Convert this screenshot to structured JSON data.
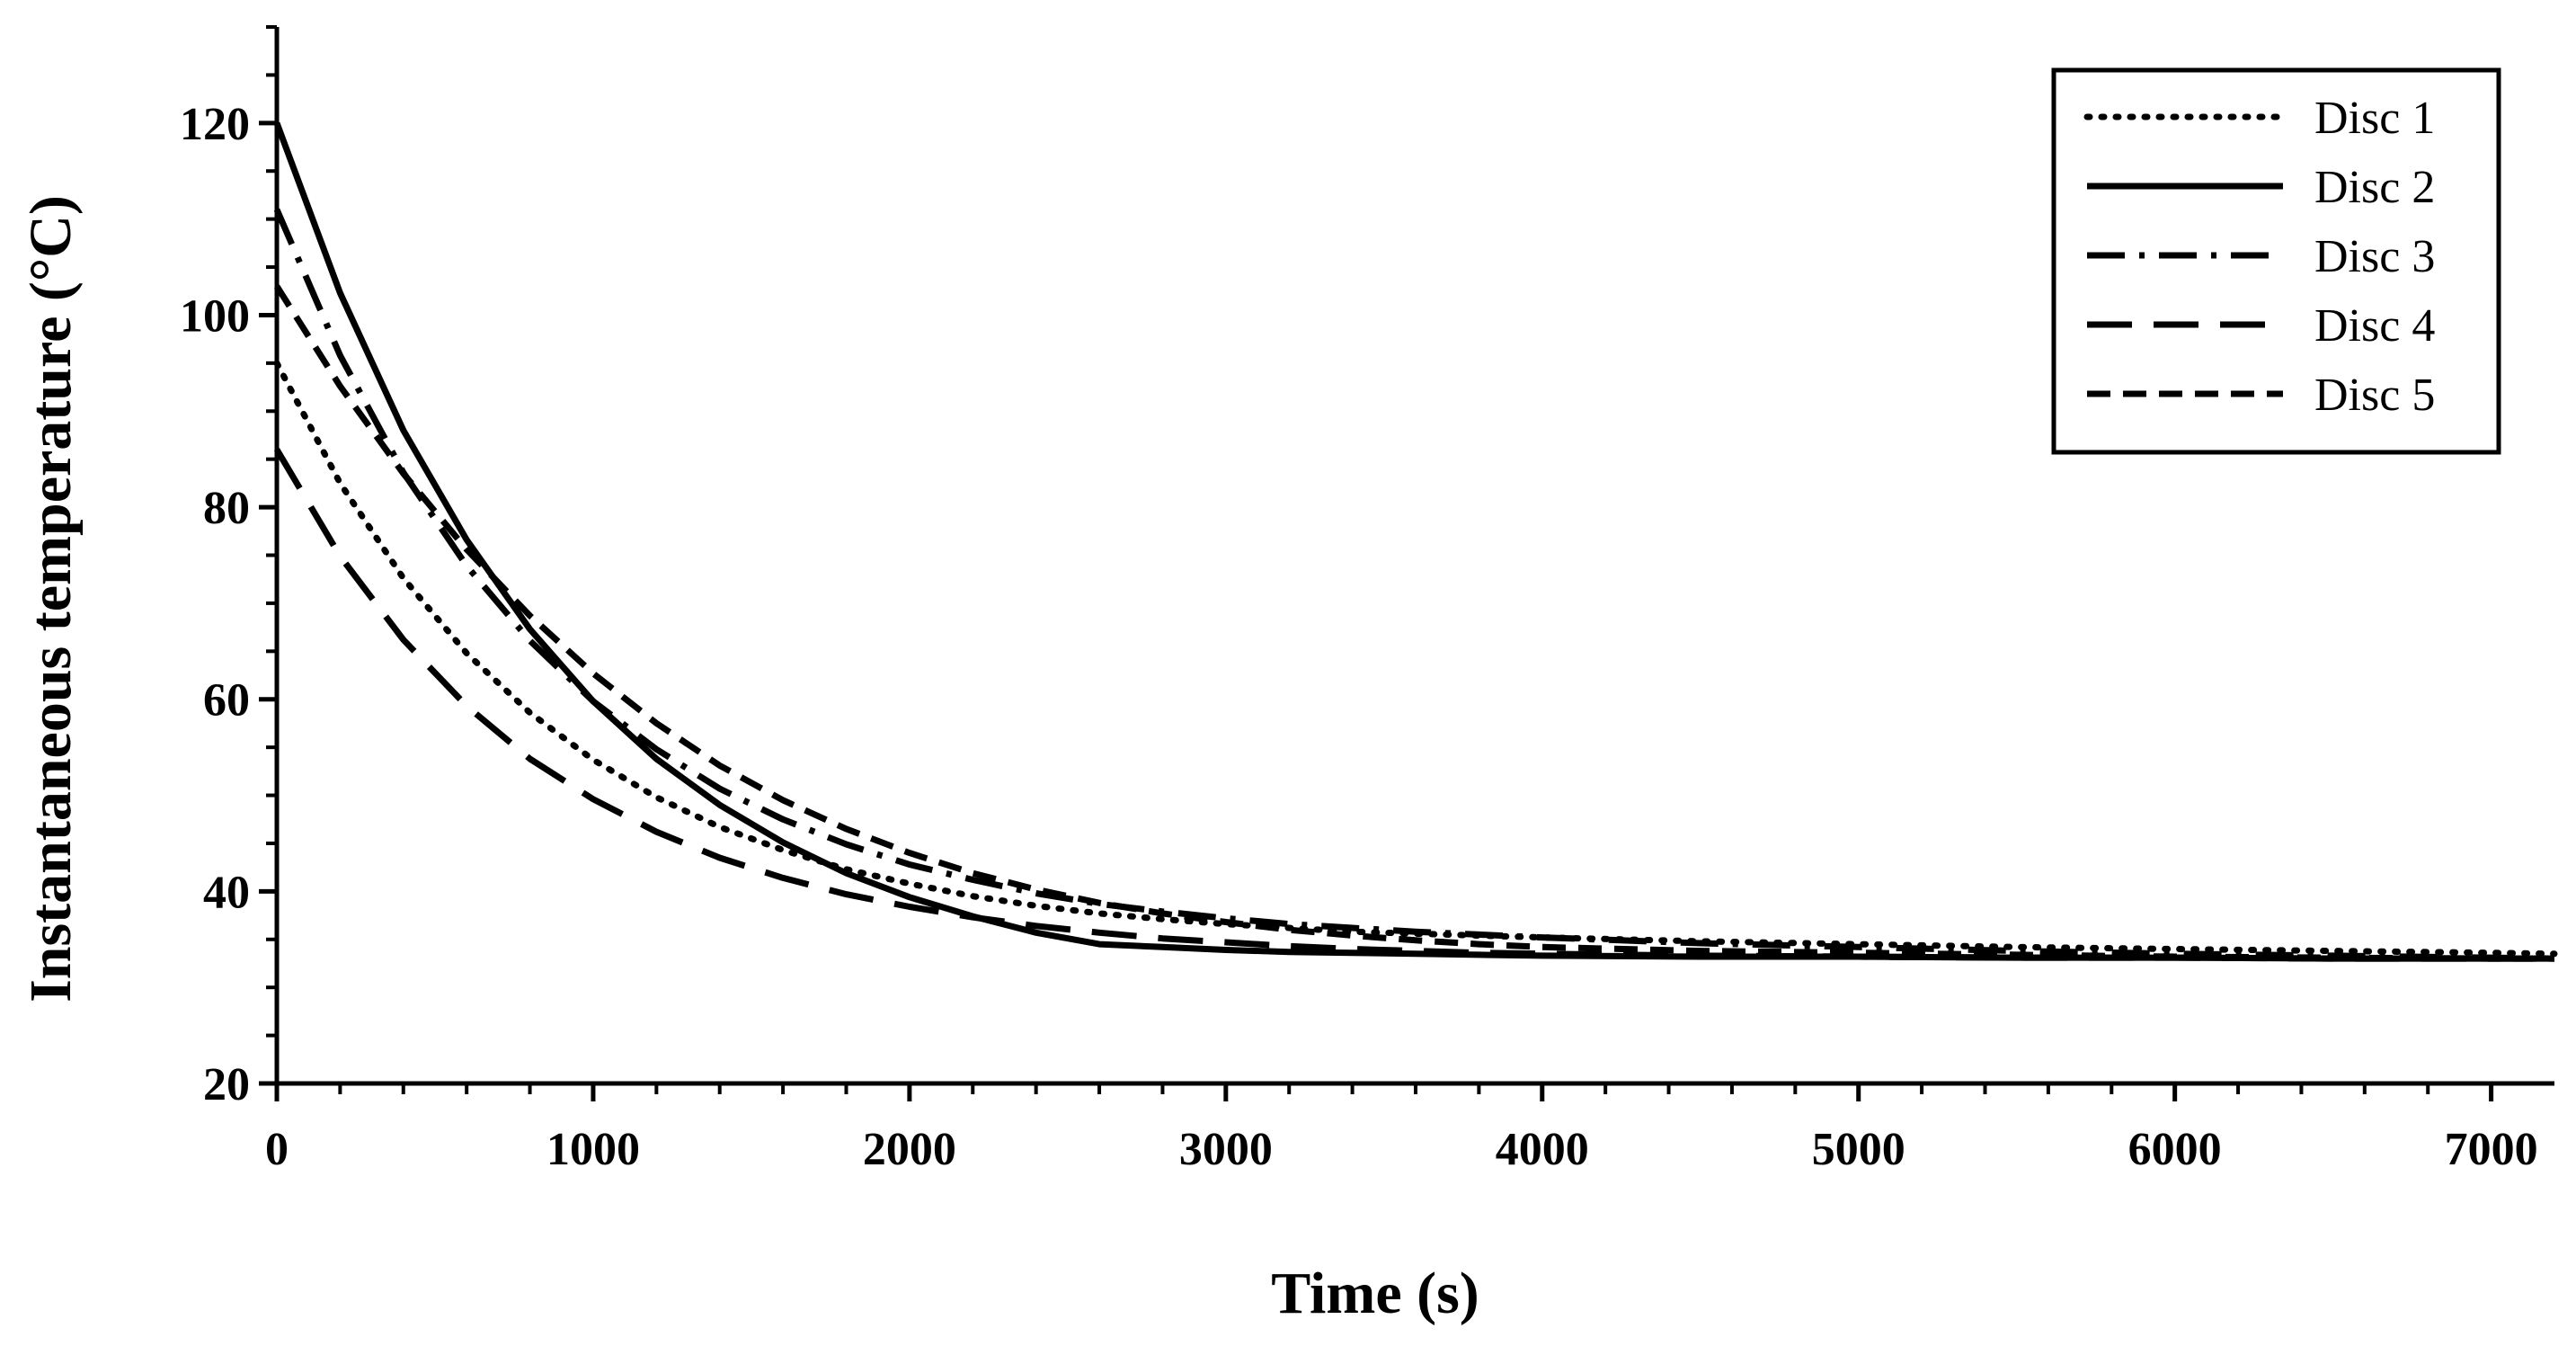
{
  "chart_data": {
    "type": "line",
    "title": "",
    "xlabel": "Time (s)",
    "ylabel": "Instantaneous temperature (°C)",
    "xlim": [
      0,
      7200
    ],
    "ylim": [
      20,
      130
    ],
    "x_ticks": [
      0,
      1000,
      2000,
      3000,
      4000,
      5000,
      6000,
      7000
    ],
    "x_tick_labels": [
      "0",
      "1000",
      "2000",
      "3000",
      "4000",
      "5000",
      "6000",
      "7000"
    ],
    "y_ticks": [
      20,
      40,
      60,
      80,
      100,
      120
    ],
    "y_tick_labels": [
      "20",
      "40",
      "60",
      "80",
      "100",
      "120"
    ],
    "grid": false,
    "legend_position": "top-right",
    "color": "#000000",
    "x": [
      0,
      200,
      400,
      600,
      800,
      1000,
      1200,
      1400,
      1600,
      1800,
      2000,
      2200,
      2400,
      2600,
      2800,
      3000,
      3200,
      3400,
      3600,
      3800,
      4000,
      4500,
      5000,
      5500,
      6000,
      6500,
      7000,
      7200
    ],
    "series": [
      {
        "name": "Disc 1",
        "style": "dotted",
        "values": [
          95.0,
          82.5,
          72.6,
          64.8,
          58.6,
          53.7,
          49.8,
          46.7,
          44.3,
          42.3,
          40.8,
          39.5,
          38.5,
          37.7,
          37.1,
          36.6,
          36.2,
          35.8,
          35.6,
          35.4,
          35.2,
          34.8,
          34.5,
          34.2,
          34.0,
          33.8,
          33.6,
          33.5
        ]
      },
      {
        "name": "Disc 2",
        "style": "solid",
        "values": [
          120.0,
          102.3,
          88.0,
          76.6,
          67.3,
          59.8,
          53.8,
          49.0,
          45.1,
          41.9,
          39.4,
          37.4,
          35.7,
          34.5,
          34.2,
          33.9,
          33.7,
          33.6,
          33.5,
          33.4,
          33.3,
          33.2,
          33.2,
          33.1,
          33.1,
          33.0,
          33.0,
          33.0
        ]
      },
      {
        "name": "Disc 3",
        "style": "dash-dot",
        "values": [
          111.0,
          95.8,
          83.6,
          73.9,
          66.1,
          59.8,
          54.8,
          50.7,
          47.5,
          44.9,
          42.8,
          41.2,
          39.8,
          38.7,
          37.9,
          37.2,
          36.6,
          36.2,
          35.8,
          35.5,
          35.2,
          34.6,
          34.2,
          33.8,
          33.5,
          33.3,
          33.1,
          33.0
        ]
      },
      {
        "name": "Disc 4",
        "style": "dashed",
        "values": [
          86.0,
          74.9,
          66.2,
          59.3,
          53.8,
          49.6,
          46.2,
          43.5,
          41.4,
          39.7,
          38.4,
          37.3,
          36.4,
          35.7,
          35.1,
          34.7,
          34.3,
          34.0,
          33.8,
          33.6,
          33.5,
          33.3,
          33.2,
          33.1,
          33.1,
          33.0,
          33.0,
          33.0
        ]
      },
      {
        "name": "Disc 5",
        "style": "short-dash",
        "values": [
          103.0,
          92.6,
          83.5,
          75.6,
          68.7,
          62.7,
          57.5,
          53.1,
          49.5,
          46.5,
          44.0,
          41.9,
          40.2,
          38.8,
          37.7,
          36.8,
          36.0,
          35.4,
          34.9,
          34.5,
          34.2,
          33.8,
          33.6,
          33.4,
          33.2,
          33.1,
          33.0,
          33.0
        ]
      }
    ]
  }
}
